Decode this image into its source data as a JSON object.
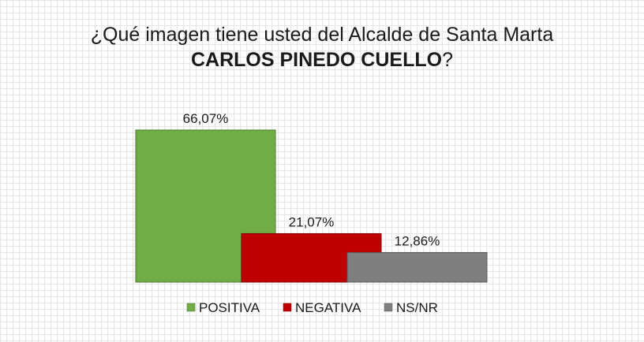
{
  "chart_data": {
    "type": "bar",
    "title_line1": "¿Qué imagen tiene usted del Alcalde de Santa Marta",
    "title_line2_bold": "CARLOS PINEDO CUELLO",
    "title_line2_suffix": "?",
    "categories": [
      "POSITIVA",
      "NEGATIVA",
      "NS/NR"
    ],
    "values": [
      66.07,
      21.07,
      12.86
    ],
    "labels": [
      "66,07%",
      "21,07%",
      "12,86%"
    ],
    "colors": [
      "#70ad47",
      "#c00000",
      "#7f7f7f"
    ],
    "ylim": [
      0,
      66.07
    ],
    "legend_position": "bottom",
    "grid": false,
    "style": "3d-stacked-depth"
  }
}
